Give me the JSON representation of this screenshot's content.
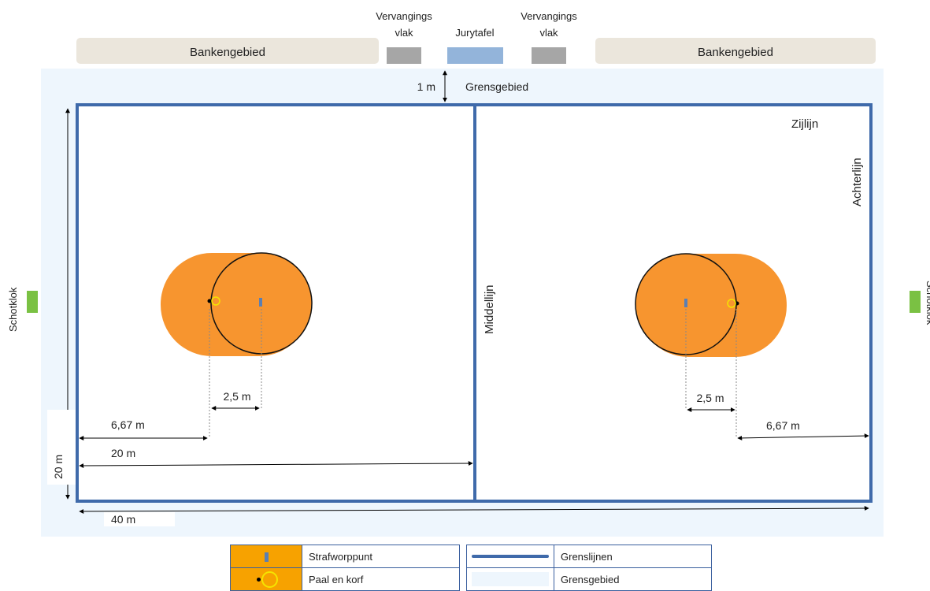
{
  "colors": {
    "boundary_line": "#3f6aaa",
    "boundary_area": "#eef6fd",
    "bench_area": "#ebe6dc",
    "sub_zone": "#a6a6a6",
    "jury_table": "#93b4da",
    "shot_clock": "#7ac143",
    "penalty_zone": "#f7952f",
    "basket_ring": "#f5e400"
  },
  "top": {
    "bench_left": "Bankengebied",
    "bench_right": "Bankengebied",
    "sub_left_line1": "Vervangings",
    "sub_left_line2": "vlak",
    "jury": "Jurytafel",
    "sub_right_line1": "Vervangings",
    "sub_right_line2": "vlak",
    "gap_label": "1 m",
    "boundary_zone": "Grensgebied"
  },
  "field": {
    "sideline": "Zijlijn",
    "backline": "Achterlijn",
    "midline": "Middellijn",
    "shot_clock": "Schotklok"
  },
  "dimensions": {
    "left_penalty": "2,5 m",
    "left_post": "6,67 m",
    "half_length": "20 m",
    "width": "20 m",
    "length": "40 m",
    "right_penalty": "2,5 m",
    "right_post": "6,67 m"
  },
  "legend": {
    "penalty_point": "Strafworppunt",
    "post_basket": "Paal en korf",
    "boundary_lines": "Grenslijnen",
    "boundary_area": "Grensgebied"
  }
}
